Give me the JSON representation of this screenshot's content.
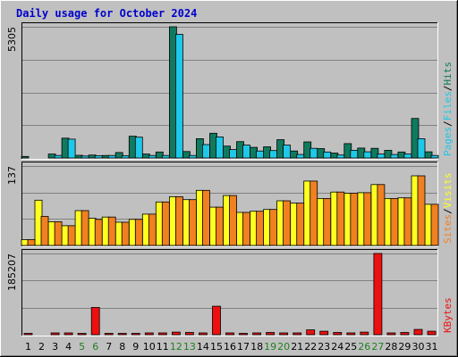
{
  "chart_data": {
    "type": "bar",
    "title": "Daily usage for October 2024",
    "colors": {
      "title": "#0000cc",
      "panel_bg": "#c0c0c0",
      "grid": "#808080",
      "hits": "#0f7a5e",
      "files": "#1ec8e8",
      "pages": "#1ec8e8",
      "visits": "#ffff20",
      "sites": "#f08020",
      "kbytes": "#ee1010",
      "weekend_label": "#208020",
      "label_dark": "#000000"
    },
    "x_labels": [
      "1",
      "2",
      "3",
      "4",
      "5",
      "6",
      "7",
      "8",
      "9",
      "10",
      "11",
      "12",
      "13",
      "14",
      "15",
      "16",
      "17",
      "18",
      "19",
      "20",
      "21",
      "22",
      "23",
      "24",
      "25",
      "26",
      "27",
      "28",
      "29",
      "30",
      "31"
    ],
    "weekend_days": [
      5,
      6,
      12,
      13,
      19,
      20,
      26,
      27
    ],
    "panels": [
      {
        "id": "hits",
        "ymax_label": "5305",
        "ymax": 5305,
        "legend": [
          {
            "text": "Pages",
            "color": "#1ec8e8"
          },
          {
            "text": "Files",
            "color": "#1ec8e8"
          },
          {
            "text": "Hits",
            "color": "#0f7a5e"
          }
        ],
        "series": [
          {
            "name": "Hits",
            "color": "#0f7a5e",
            "values": [
              60,
              0,
              160,
              800,
              110,
              120,
              100,
              220,
              880,
              160,
              240,
              5305,
              260,
              780,
              1000,
              480,
              660,
              430,
              450,
              740,
              280,
              650,
              380,
              200,
              580,
              400,
              390,
              310,
              240,
              1600,
              250
            ]
          },
          {
            "name": "Files",
            "color": "#1ec8e8",
            "values": [
              0,
              0,
              100,
              760,
              80,
              90,
              100,
              90,
              840,
              100,
              100,
              5000,
              100,
              540,
              850,
              340,
              520,
              280,
              300,
              520,
              140,
              390,
              240,
              120,
              310,
              250,
              160,
              140,
              160,
              780,
              100
            ]
          }
        ]
      },
      {
        "id": "sites",
        "ymax_label": "137",
        "ymax": 137,
        "legend": [
          {
            "text": "Sites",
            "color": "#f08020"
          },
          {
            "text": "Visits",
            "color": "#ffff20"
          }
        ],
        "series": [
          {
            "name": "Visits",
            "color": "#ffff20",
            "values": [
              10,
              78,
              41,
              34,
              60,
              47,
              49,
              40,
              45,
              54,
              75,
              84,
              79,
              95,
              66,
              86,
              57,
              59,
              62,
              77,
              73,
              111,
              81,
              92,
              90,
              91,
              105,
              81,
              82,
              120,
              71
            ]
          },
          {
            "name": "Sites",
            "color": "#f08020",
            "values": [
              10,
              50,
              41,
              34,
              60,
              45,
              49,
              40,
              45,
              54,
              75,
              84,
              79,
              95,
              66,
              86,
              57,
              59,
              62,
              77,
              73,
              111,
              81,
              92,
              90,
              91,
              105,
              81,
              82,
              120,
              71
            ]
          }
        ]
      },
      {
        "id": "kbytes",
        "ymax_label": "185207",
        "ymax": 185207,
        "legend": [
          {
            "text": "KBytes",
            "color": "#ee1010"
          }
        ],
        "series": [
          {
            "name": "KBytes",
            "color": "#ee1010",
            "values": [
              1000,
              0,
              4000,
              4000,
              3000,
              62000,
              3000,
              3000,
              2000,
              4000,
              4000,
              6000,
              5000,
              4000,
              65000,
              4000,
              3000,
              4000,
              5000,
              4000,
              4000,
              11000,
              8000,
              5000,
              4000,
              6000,
              185207,
              4000,
              5000,
              12000,
              8000
            ]
          }
        ]
      }
    ]
  }
}
